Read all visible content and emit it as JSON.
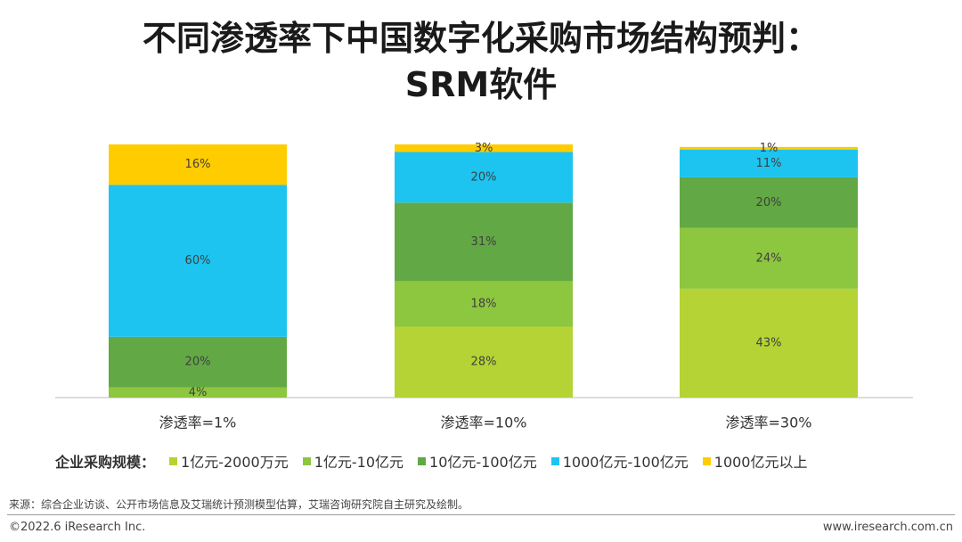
{
  "title": {
    "line1": "不同渗透率下中国数字化采购市场结构预判：",
    "line2": "SRM软件"
  },
  "chart_data": {
    "type": "bar",
    "stacked": true,
    "categories": [
      "渗透率=1%",
      "渗透率=10%",
      "渗透率=30%"
    ],
    "series": [
      {
        "name": "1亿元-2000万元",
        "color": "#B5D334",
        "values": [
          0,
          28,
          43
        ],
        "labels": [
          "",
          "28%",
          "43%"
        ]
      },
      {
        "name": "1亿元-10亿元",
        "color": "#8DC63F",
        "values": [
          4,
          18,
          24
        ],
        "labels": [
          "4%",
          "18%",
          "24%"
        ]
      },
      {
        "name": "10亿元-100亿元",
        "color": "#62A844",
        "values": [
          20,
          31,
          20
        ],
        "labels": [
          "20%",
          "31%",
          "20%"
        ]
      },
      {
        "name": "1000亿元-100亿元",
        "color": "#1CC4EF",
        "values": [
          60,
          20,
          11
        ],
        "labels": [
          "60%",
          "20%",
          "11%"
        ]
      },
      {
        "name": "1000亿元以上",
        "color": "#FFCC00",
        "values": [
          16,
          3,
          1
        ],
        "labels": [
          "16%",
          "3%",
          "1%"
        ]
      }
    ],
    "ylim": [
      0,
      100
    ],
    "grid": false,
    "legend_position": "bottom"
  },
  "legend": {
    "title": "企业采购规模："
  },
  "source": "来源：综合企业访谈、公开市场信息及艾瑞统计预测模型估算，艾瑞咨询研究院自主研究及绘制。",
  "footer": {
    "copyright": "©2022.6 iResearch Inc.",
    "website": "www.iresearch.com.cn"
  }
}
